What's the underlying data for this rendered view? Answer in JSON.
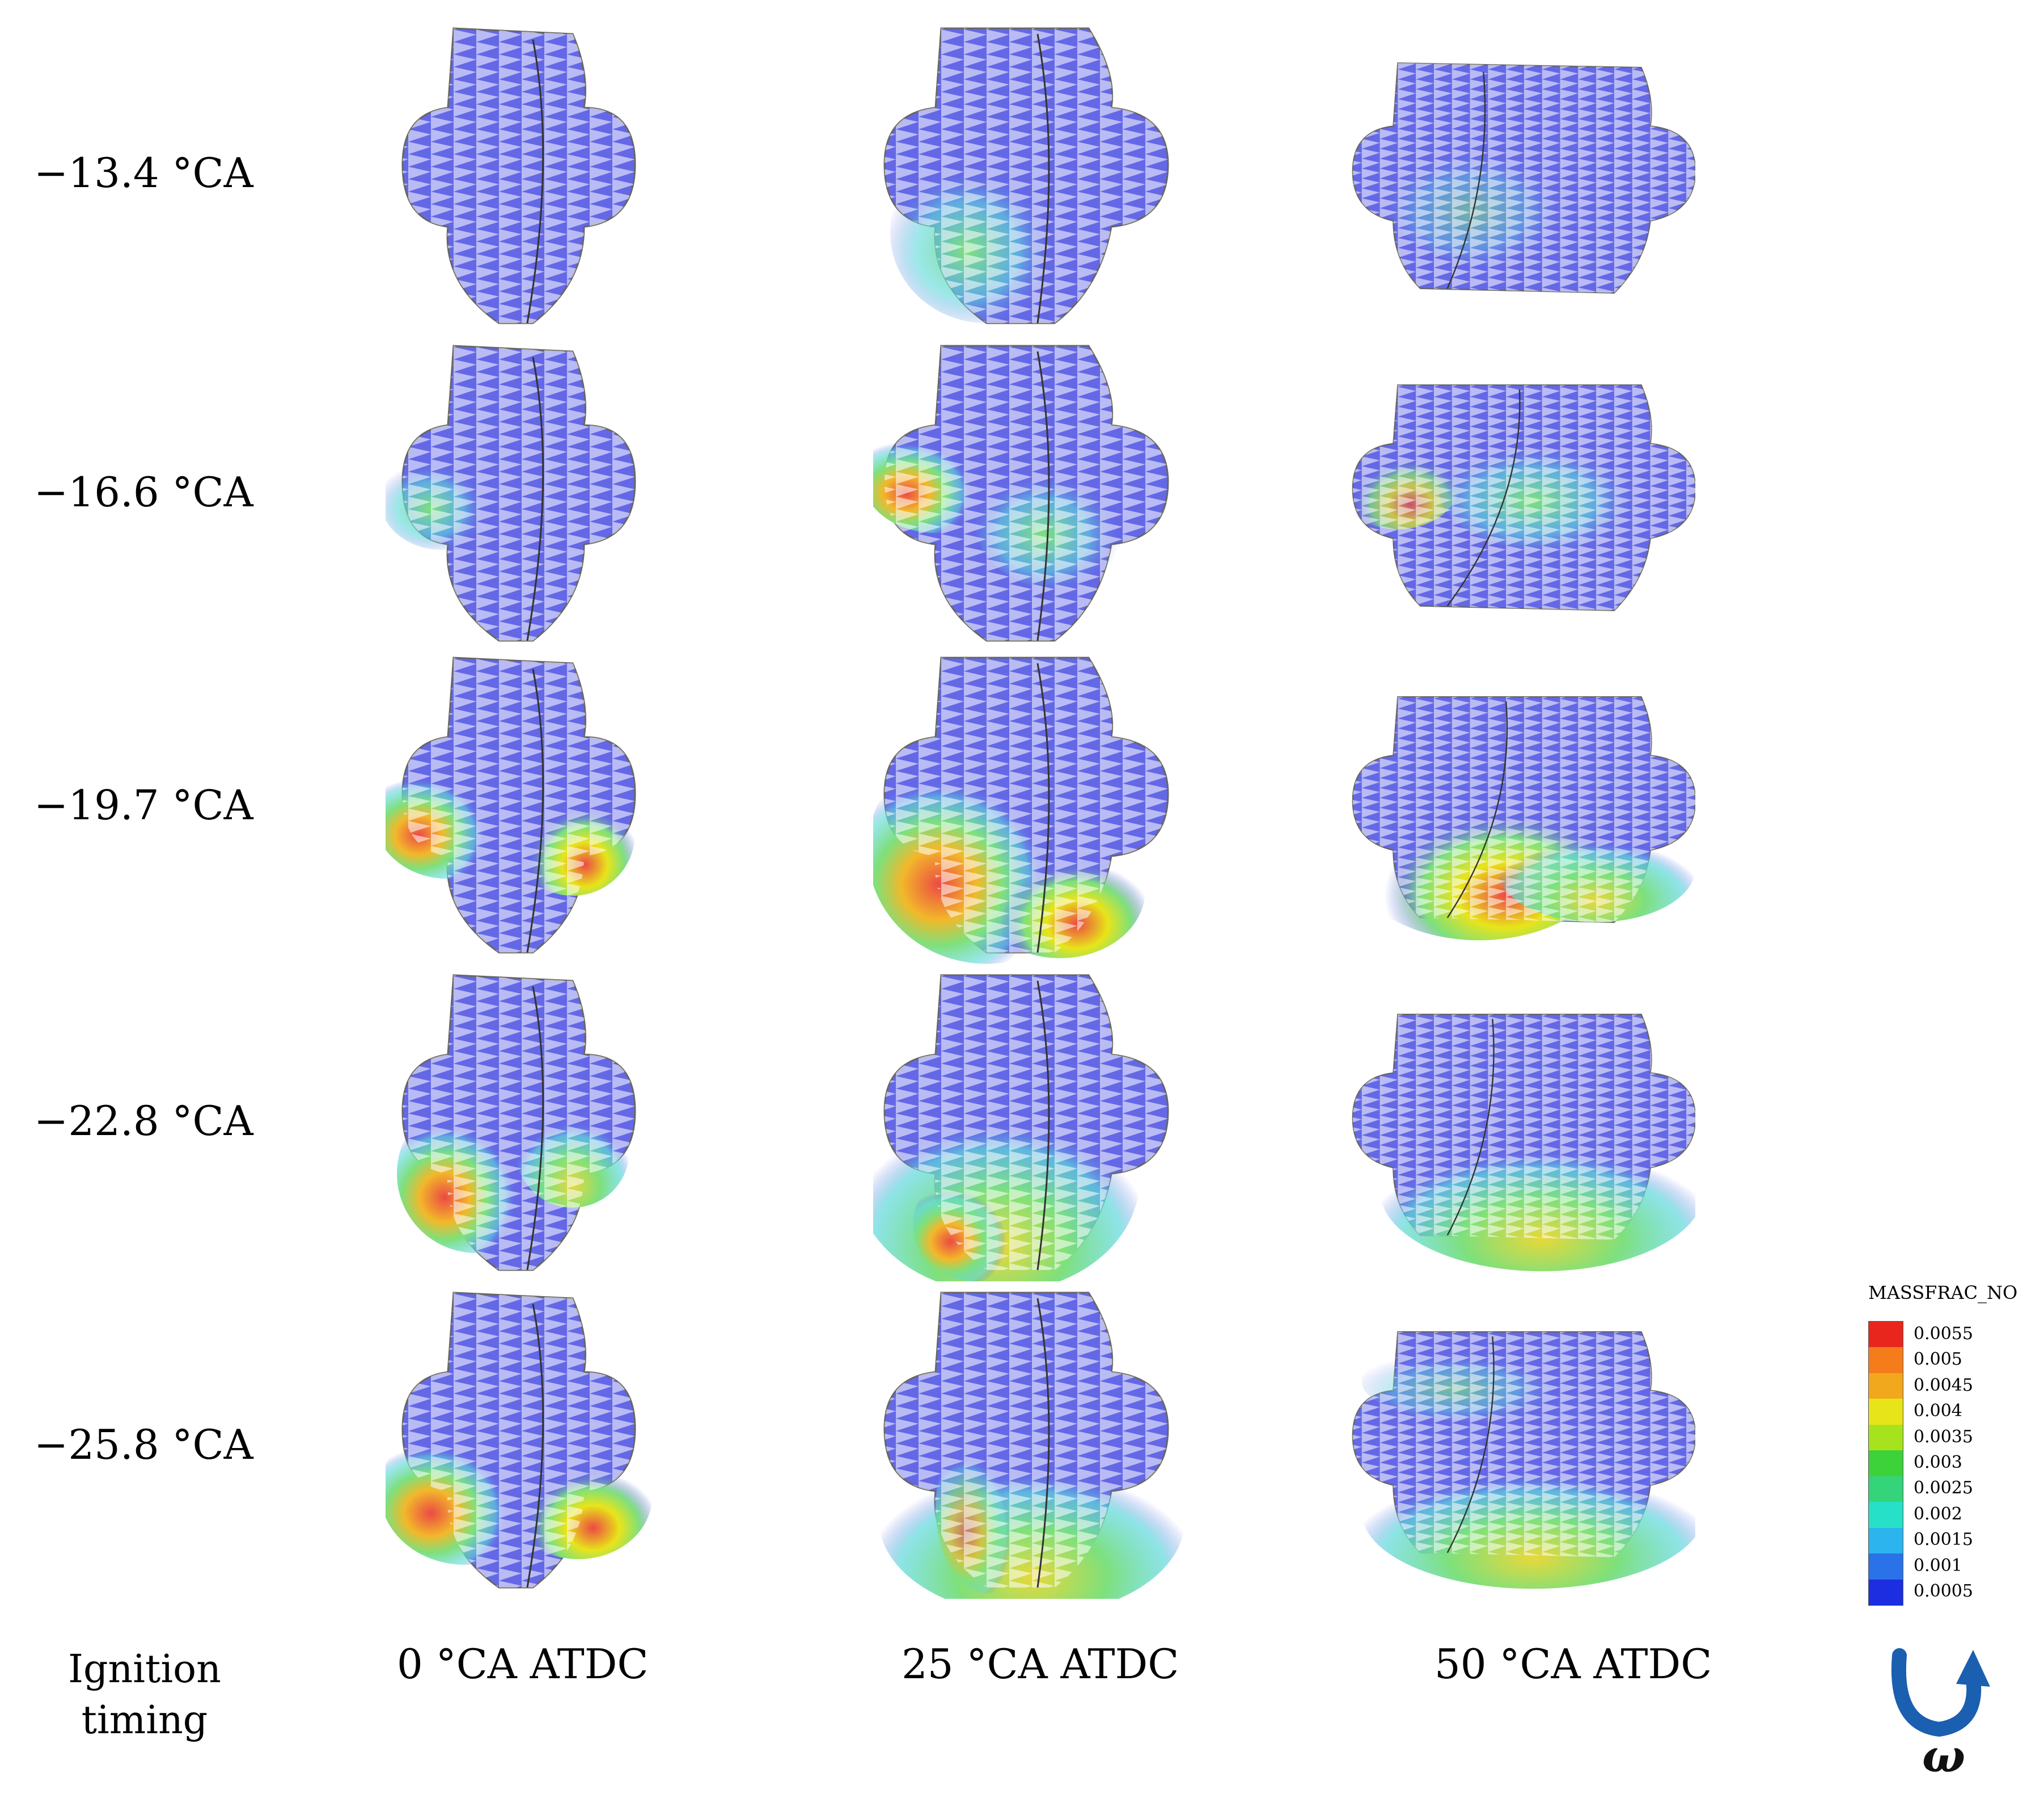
{
  "rows": [
    {
      "label": "−13.4 °CA"
    },
    {
      "label": "−16.6 °CA"
    },
    {
      "label": "−19.7 °CA"
    },
    {
      "label": "−22.8 °CA"
    },
    {
      "label": "−25.8 °CA"
    }
  ],
  "row_header": {
    "label": "Ignition timing"
  },
  "columns": [
    {
      "label": "0 °CA ATDC"
    },
    {
      "label": "25 °CA ATDC"
    },
    {
      "label": "50 °CA ATDC"
    }
  ],
  "legend": {
    "title": "MASSFRAC_NO",
    "ticks": [
      "0.0055",
      "0.005",
      "0.0045",
      "0.004",
      "0.0035",
      "0.003",
      "0.0025",
      "0.002",
      "0.0015",
      "0.001",
      "0.0005"
    ],
    "colors": [
      "#e8261e",
      "#f57c1a",
      "#f2a81c",
      "#e8e41a",
      "#a6e31c",
      "#3ed23a",
      "#34d47a",
      "#26e0c8",
      "#2bb4ee",
      "#2a72e8",
      "#1c2ee0"
    ]
  },
  "rotation_symbol": "ω",
  "colors": {
    "base_blue": "#6468e6",
    "hot_red": "#ec4a44",
    "mid_green": "#7ee07c",
    "cyan": "#5ed8dc"
  }
}
